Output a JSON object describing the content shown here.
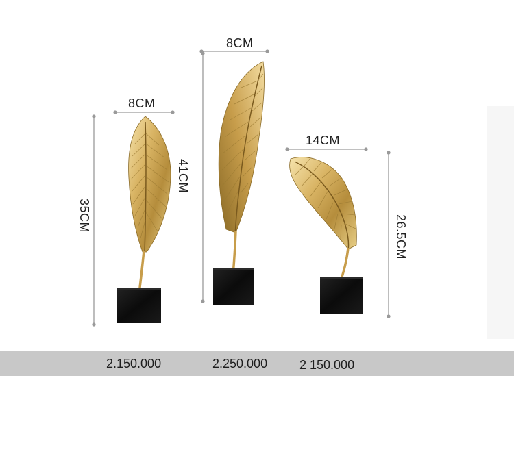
{
  "products": [
    {
      "width_label": "8CM",
      "height_label": "35CM",
      "price": "2.150.000"
    },
    {
      "width_label": "8CM",
      "height_label": "41CM",
      "price": "2.250.000"
    },
    {
      "width_label": "14CM",
      "height_label": "26.5CM",
      "price": "2 150.000"
    }
  ],
  "colors": {
    "gold_light": "#f3dca0",
    "gold_mid": "#d2ad5a",
    "gold_dark": "#8a6a26",
    "base_black": "#0d0d0d",
    "dim_line": "#9a9a9a",
    "price_bar": "#c8c8c8"
  }
}
